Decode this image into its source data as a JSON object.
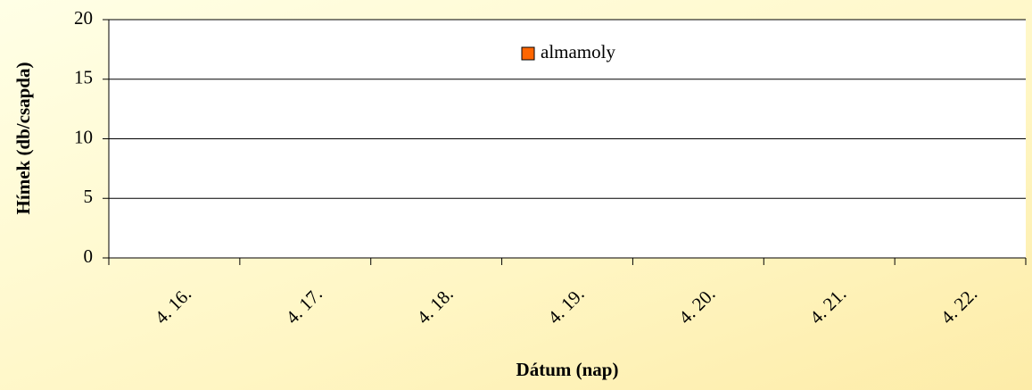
{
  "chart_data": {
    "type": "bar",
    "x_label": "Dátum (nap)",
    "y_label": "Hímek (db/csapda)",
    "categories": [
      "4. 16.",
      "4. 17.",
      "4. 18.",
      "4. 19.",
      "4. 20.",
      "4. 21.",
      "4. 22."
    ],
    "series": [
      {
        "name": "almamoly",
        "color": "#ff6600",
        "values": [
          0,
          0,
          0,
          0,
          0,
          0,
          0
        ]
      }
    ],
    "ylim": [
      0,
      20
    ],
    "yticks": [
      0,
      5,
      10,
      15,
      20
    ],
    "grid": true,
    "legend": "top"
  }
}
